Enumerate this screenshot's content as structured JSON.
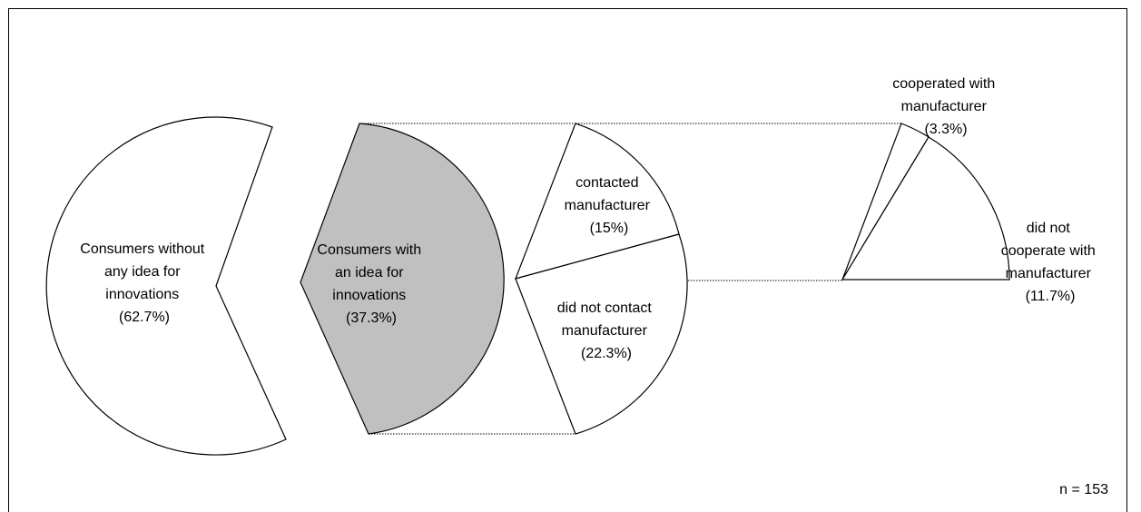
{
  "chart_data": {
    "type": "pie",
    "title": "",
    "sample_size_label": "n = 153",
    "colors": {
      "highlight_fill": "#c0c0c0",
      "default_fill": "#ffffff",
      "stroke": "#000000"
    },
    "main_pie": {
      "slices": [
        {
          "label_lines": [
            "Consumers without",
            "any idea for",
            "innovations",
            "(62.7%)"
          ],
          "value": 62.7
        },
        {
          "label_lines": [
            "Consumers with",
            "an idea for",
            "innovations",
            "(37.3%)"
          ],
          "value": 37.3,
          "highlighted": true
        }
      ]
    },
    "breakdown_1": {
      "of": "Consumers with an idea for innovations",
      "slices": [
        {
          "label_lines": [
            "contacted",
            "manufacturer",
            "(15%)"
          ],
          "value": 15
        },
        {
          "label_lines": [
            "did not contact",
            "manufacturer",
            "(22.3%)"
          ],
          "value": 22.3
        }
      ]
    },
    "breakdown_2": {
      "of": "contacted manufacturer",
      "slices": [
        {
          "label_lines": [
            "cooperated with",
            "manufacturer",
            "(3.3%)"
          ],
          "value": 3.3
        },
        {
          "label_lines": [
            "did not",
            "cooperate with",
            "manufacturer",
            "(11.7%)"
          ],
          "value": 11.7
        }
      ]
    }
  }
}
